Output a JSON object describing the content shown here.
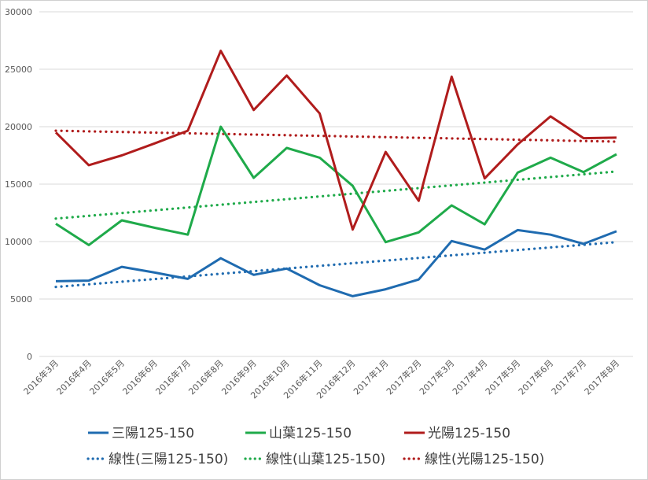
{
  "chart_data": {
    "type": "line",
    "categories": [
      "2016年3月",
      "2016年4月",
      "2016年5月",
      "2016年6月",
      "2016年7月",
      "2016年8月",
      "2016年9月",
      "2016年10月",
      "2016年11月",
      "2016年12月",
      "2017年1月",
      "2017年2月",
      "2017年3月",
      "2017年4月",
      "2017年5月",
      "2017年6月",
      "2017年7月",
      "2017年8月"
    ],
    "ylim": [
      0,
      30000
    ],
    "yticks": [
      0,
      5000,
      10000,
      15000,
      20000,
      25000,
      30000
    ],
    "grid": true,
    "legend_position": "bottom",
    "series": [
      {
        "name": "三陽125-150",
        "color": "#1f6bb0",
        "values": [
          6550,
          6600,
          7800,
          7300,
          6750,
          8550,
          7100,
          7650,
          6200,
          5250,
          5850,
          6700,
          10050,
          9300,
          11000,
          10600,
          9800,
          10900
        ]
      },
      {
        "name": "山葉125-150",
        "color": "#1faa4a",
        "values": [
          11550,
          9700,
          11850,
          11200,
          10600,
          20000,
          15550,
          18150,
          17300,
          14850,
          9950,
          10800,
          13150,
          11500,
          16000,
          17300,
          16050,
          17600
        ]
      },
      {
        "name": "光陽125-150",
        "color": "#b01c1c",
        "values": [
          19500,
          16650,
          17500,
          18550,
          19650,
          26600,
          21450,
          24450,
          21150,
          11050,
          17800,
          13550,
          24350,
          15500,
          18450,
          20900,
          19000,
          19050
        ]
      }
    ],
    "trendlines": [
      {
        "name": "線性(三陽125-150)",
        "color": "#1f6bb0",
        "start": 6050,
        "end": 9950
      },
      {
        "name": "線性(山葉125-150)",
        "color": "#1faa4a",
        "start": 12000,
        "end": 16100
      },
      {
        "name": "線性(光陽125-150)",
        "color": "#b01c1c",
        "start": 19650,
        "end": 18700
      }
    ]
  }
}
